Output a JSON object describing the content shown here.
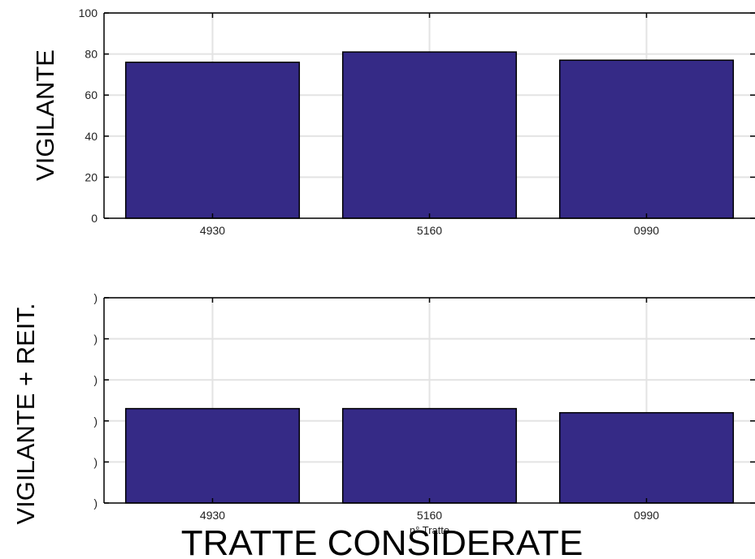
{
  "colors": {
    "bar_fill": "#352a86",
    "bar_edge": "#000000",
    "grid": "#e3e3e3",
    "axis": "#000000"
  },
  "figure_xlabel": "TRATTE CONSIDERATE",
  "chart_data": [
    {
      "type": "bar",
      "ylabel": "VIGILANTE",
      "xlabel": "",
      "categories": [
        "4930",
        "5160",
        "0990"
      ],
      "values": [
        76,
        81,
        77
      ],
      "ylim": [
        0,
        100
      ],
      "yticks": [
        0,
        20,
        40,
        60,
        80,
        100
      ],
      "ytick_labels": [
        "0",
        "20",
        "40",
        "60",
        "80",
        "100"
      ],
      "grid": true
    },
    {
      "type": "bar",
      "ylabel": "VIGILANTE + REIT.",
      "xlabel": "n° Tratte",
      "categories": [
        "4930",
        "5160",
        "0990"
      ],
      "values": [
        46,
        46,
        44
      ],
      "ylim": [
        0,
        100
      ],
      "yticks": [
        0,
        20,
        40,
        60,
        80,
        100
      ],
      "ytick_labels": [
        ")",
        ")",
        ")",
        ")",
        ")",
        ")"
      ],
      "grid": true
    }
  ]
}
